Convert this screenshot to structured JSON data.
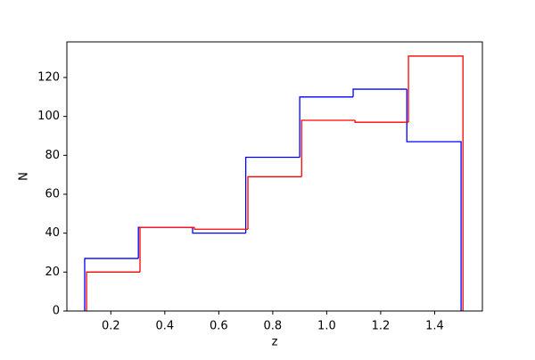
{
  "chart_data": {
    "type": "histogram",
    "xlabel": "z",
    "ylabel": "N",
    "series": [
      {
        "color": "#0000ff",
        "bins": [
          0.103,
          0.302,
          0.503,
          0.7,
          0.9,
          1.098,
          1.297,
          1.498
        ],
        "values": [
          27,
          43,
          40,
          79,
          110,
          114,
          87
        ]
      },
      {
        "color": "#ff0000",
        "bins": [
          0.11,
          0.308,
          0.51,
          0.708,
          0.907,
          1.105,
          1.303,
          1.505
        ],
        "values": [
          20,
          43,
          42,
          69,
          98,
          97,
          131
        ]
      }
    ],
    "xlim": [
      0.037,
      1.577
    ],
    "ylim": [
      0,
      138.3
    ],
    "xticks": [
      0.2,
      0.4,
      0.6,
      0.8,
      {
        "value": 1,
        "label": "1.0"
      },
      1.2,
      1.4
    ],
    "yticks": [
      0,
      20,
      40,
      60,
      80,
      100,
      120
    ]
  }
}
